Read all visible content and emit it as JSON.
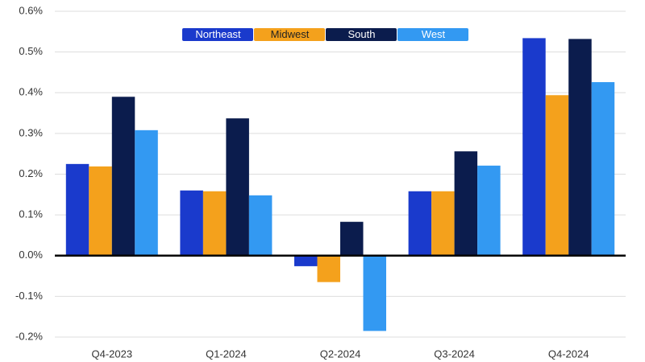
{
  "chart_data": {
    "type": "bar",
    "categories": [
      "Q4-2023",
      "Q1-2024",
      "Q2-2024",
      "Q3-2024",
      "Q4-2024"
    ],
    "series": [
      {
        "name": "Northeast",
        "color": "#1a3acc",
        "values": [
          0.225,
          0.16,
          -0.026,
          0.158,
          0.534
        ]
      },
      {
        "name": "Midwest",
        "color": "#f4a11c",
        "values": [
          0.219,
          0.158,
          -0.065,
          0.158,
          0.394
        ]
      },
      {
        "name": "South",
        "color": "#0b1c4d",
        "values": [
          0.39,
          0.337,
          0.083,
          0.256,
          0.532
        ]
      },
      {
        "name": "West",
        "color": "#3399f2",
        "values": [
          0.308,
          0.148,
          -0.185,
          0.221,
          0.426
        ]
      }
    ],
    "ylim": [
      -0.2,
      0.6
    ],
    "yticks": [
      {
        "value": -0.2,
        "label": "-0.2%"
      },
      {
        "value": -0.1,
        "label": "-0.1%"
      },
      {
        "value": 0,
        "label": "0.0%"
      },
      {
        "value": 0.1,
        "label": "0.1%"
      },
      {
        "value": 0.2,
        "label": "0.2%"
      },
      {
        "value": 0.3,
        "label": "0.3%"
      },
      {
        "value": 0.4,
        "label": "0.4%"
      },
      {
        "value": 0.5,
        "label": "0.5%"
      },
      {
        "value": 0.6,
        "label": "0.6%"
      }
    ],
    "grid": true,
    "legend": "top"
  }
}
